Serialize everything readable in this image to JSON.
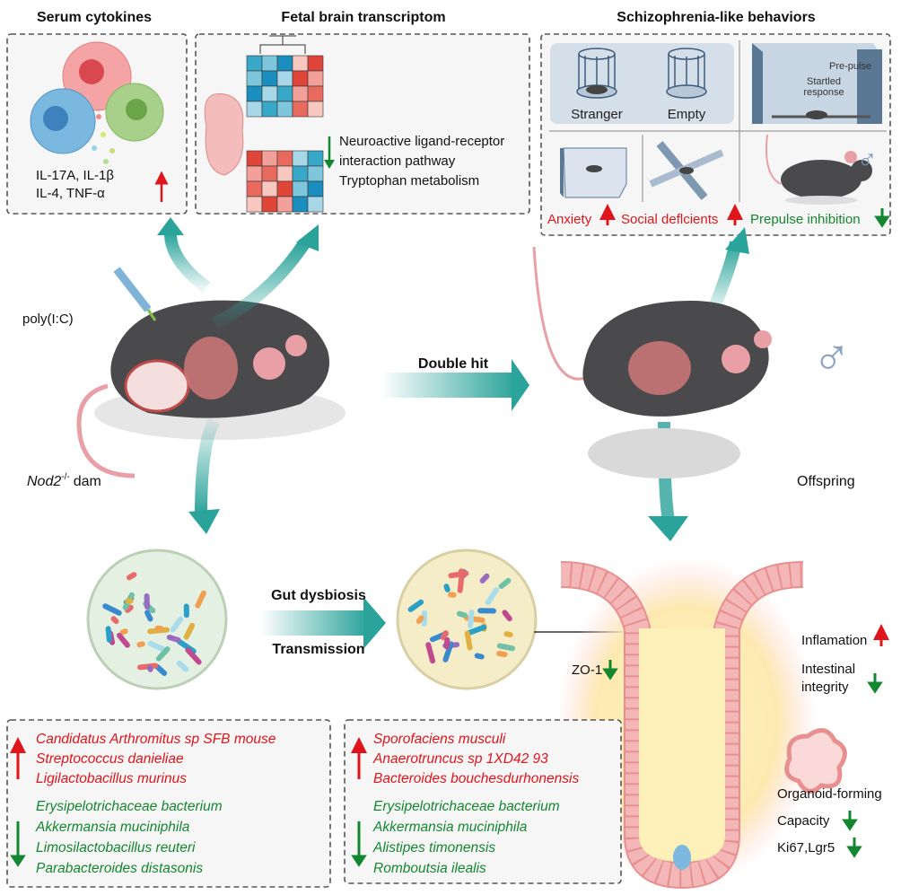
{
  "titles": {
    "serum": "Serum cytokines",
    "fetal": "Fetal brain transcriptom",
    "behaviors": "Schizophrenia-like behaviors"
  },
  "cytokines": {
    "line1": "IL-17A, IL-1β",
    "line2": "IL-4, TNF-α"
  },
  "transcriptome": {
    "lines": [
      "Neuroactive ligand-receptor",
      "interaction pathway",
      "Tryptophan metabolism"
    ]
  },
  "behaviors": {
    "stranger": "Stranger",
    "empty": "Empty",
    "prepulse": "Pre-pulse",
    "startled1": "Startled",
    "startled2": "response",
    "anxiety": "Anxiety",
    "social": "Social deflcients",
    "ppi": "Prepulse inhibition"
  },
  "dam": {
    "injection": "poly(I:C)",
    "gene": "Nod2",
    "genotype": "-/-",
    "label": "dam"
  },
  "double_hit": "Double hit",
  "offspring": "Offspring",
  "male_symbol": "♂",
  "gut_dysbiosis": "Gut dysbiosis",
  "transmission": "Transmission",
  "dam_microbes": {
    "up": [
      "Candidatus Arthromitus sp SFB mouse",
      "Streptococcus danieliae",
      "Ligilactobacillus murinus"
    ],
    "down": [
      "Erysipelotrichaceae bacterium",
      "Akkermansia muciniphila",
      "Limosilactobacillus reuteri",
      "Parabacteroides distasonis"
    ]
  },
  "offspring_microbes": {
    "up": [
      "Sporofaciens musculi",
      "Anaerotruncus sp 1XD42 93",
      "Bacteroides bouchesdurhonensis"
    ],
    "down": [
      "Erysipelotrichaceae bacterium",
      "Akkermansia muciniphila",
      "Alistipes timonensis",
      "Romboutsia ilealis"
    ]
  },
  "intestine": {
    "zo1": "ZO-1",
    "inflammation": "Inflamation",
    "integrity1": "Intestinal",
    "integrity2": "integrity",
    "organoid": "Organoid-forming",
    "capacity": "Capacity",
    "markers": "Ki67,Lgr5"
  },
  "colors": {
    "up": "#e0151b",
    "down": "#13872f",
    "arrow": "#2aa39a"
  }
}
